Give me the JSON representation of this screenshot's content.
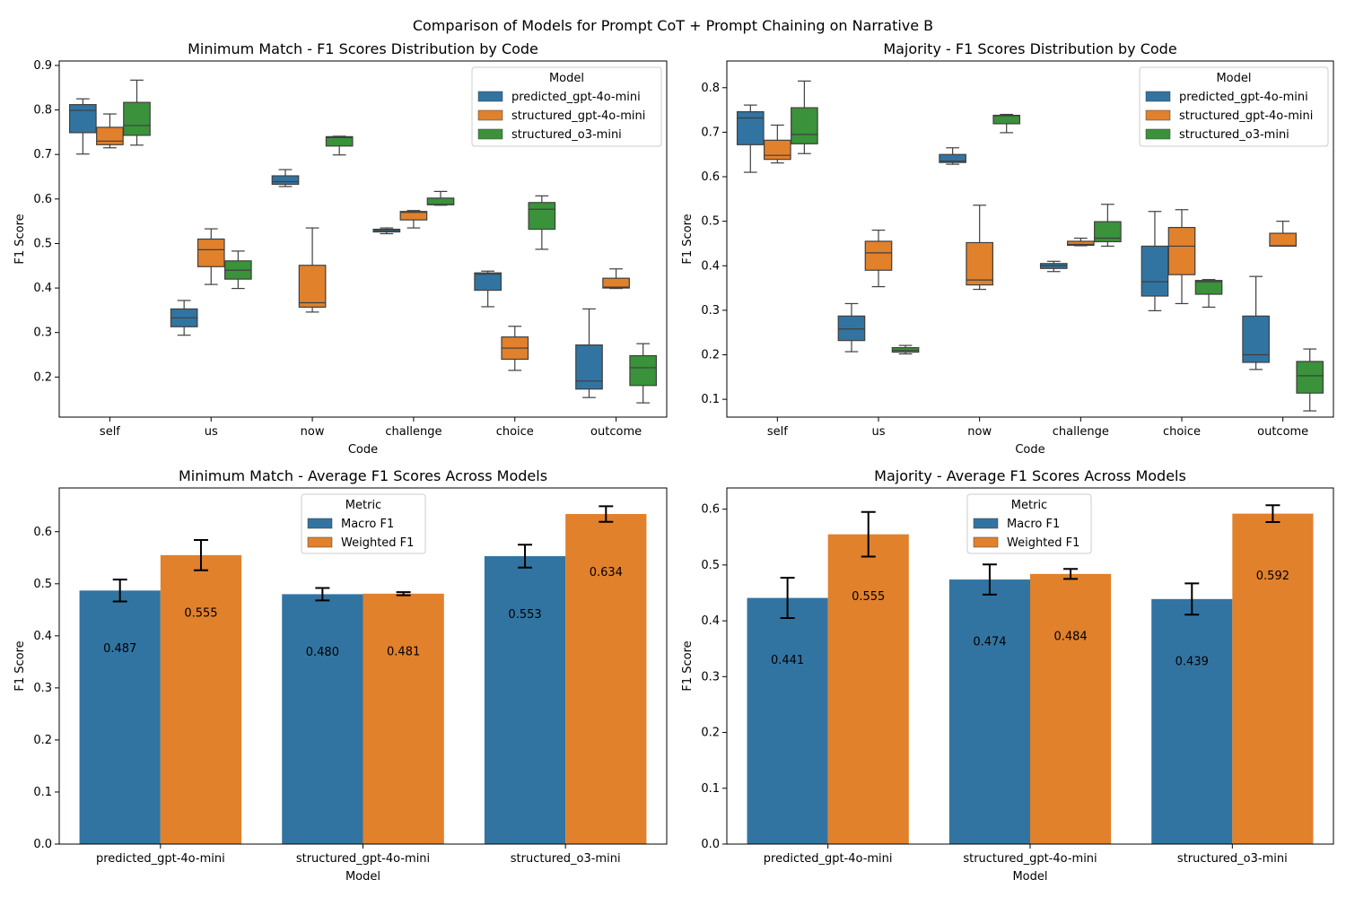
{
  "figure": {
    "title": "Comparison of Models for Prompt CoT + Prompt Chaining on Narrative B"
  },
  "colors": {
    "predicted_gpt-4o-mini": "#3274a1",
    "structured_gpt-4o-mini": "#e1812c",
    "structured_o3-mini": "#3a923a",
    "Macro F1": "#3274a1",
    "Weighted F1": "#e1812c",
    "box_line": "#3f3f3f"
  },
  "chart_data": [
    {
      "type": "box",
      "title": "Minimum Match - F1 Scores Distribution by Code",
      "xlabel": "Code",
      "ylabel": "F1 Score",
      "categories": [
        "self",
        "us",
        "now",
        "challenge",
        "choice",
        "outcome"
      ],
      "ylim": [
        0.11,
        0.91
      ],
      "yticks": [
        0.2,
        0.3,
        0.4,
        0.5,
        0.6,
        0.7,
        0.8,
        0.9
      ],
      "legend": {
        "title": "Model",
        "position": "top-right"
      },
      "series": [
        {
          "name": "predicted_gpt-4o-mini",
          "boxes": [
            {
              "min": 0.701,
              "q1": 0.749,
              "median": 0.799,
              "q3": 0.812,
              "max": 0.825
            },
            {
              "min": 0.294,
              "q1": 0.313,
              "median": 0.333,
              "q3": 0.353,
              "max": 0.372
            },
            {
              "min": 0.628,
              "q1": 0.633,
              "median": 0.639,
              "q3": 0.652,
              "max": 0.666
            },
            {
              "min": 0.522,
              "q1": 0.526,
              "median": 0.529,
              "q3": 0.532,
              "max": 0.535
            },
            {
              "min": 0.358,
              "q1": 0.395,
              "median": 0.431,
              "q3": 0.434,
              "max": 0.438
            },
            {
              "min": 0.154,
              "q1": 0.173,
              "median": 0.191,
              "q3": 0.272,
              "max": 0.353
            }
          ]
        },
        {
          "name": "structured_gpt-4o-mini",
          "boxes": [
            {
              "min": 0.715,
              "q1": 0.722,
              "median": 0.73,
              "q3": 0.761,
              "max": 0.791
            },
            {
              "min": 0.408,
              "q1": 0.448,
              "median": 0.486,
              "q3": 0.51,
              "max": 0.533
            },
            {
              "min": 0.346,
              "q1": 0.357,
              "median": 0.367,
              "q3": 0.451,
              "max": 0.535
            },
            {
              "min": 0.535,
              "q1": 0.553,
              "median": 0.57,
              "q3": 0.572,
              "max": 0.574
            },
            {
              "min": 0.215,
              "q1": 0.24,
              "median": 0.265,
              "q3": 0.29,
              "max": 0.314
            },
            {
              "min": 0.399,
              "q1": 0.4,
              "median": 0.402,
              "q3": 0.422,
              "max": 0.443
            }
          ]
        },
        {
          "name": "structured_o3-mini",
          "boxes": [
            {
              "min": 0.721,
              "q1": 0.743,
              "median": 0.765,
              "q3": 0.817,
              "max": 0.867
            },
            {
              "min": 0.399,
              "q1": 0.42,
              "median": 0.44,
              "q3": 0.461,
              "max": 0.483
            },
            {
              "min": 0.699,
              "q1": 0.719,
              "median": 0.738,
              "q3": 0.74,
              "max": 0.741
            },
            {
              "min": 0.586,
              "q1": 0.587,
              "median": 0.588,
              "q3": 0.602,
              "max": 0.617
            },
            {
              "min": 0.487,
              "q1": 0.532,
              "median": 0.577,
              "q3": 0.592,
              "max": 0.607
            },
            {
              "min": 0.142,
              "q1": 0.181,
              "median": 0.221,
              "q3": 0.248,
              "max": 0.275
            }
          ]
        }
      ]
    },
    {
      "type": "box",
      "title": "Majority - F1 Scores Distribution by Code",
      "xlabel": "Code",
      "ylabel": "F1 Score",
      "categories": [
        "self",
        "us",
        "now",
        "challenge",
        "choice",
        "outcome"
      ],
      "ylim": [
        0.06,
        0.86
      ],
      "yticks": [
        0.1,
        0.2,
        0.3,
        0.4,
        0.5,
        0.6,
        0.7,
        0.8
      ],
      "legend": {
        "title": "Model",
        "position": "top-right"
      },
      "series": [
        {
          "name": "predicted_gpt-4o-mini",
          "boxes": [
            {
              "min": 0.61,
              "q1": 0.672,
              "median": 0.732,
              "q3": 0.746,
              "max": 0.761
            },
            {
              "min": 0.207,
              "q1": 0.232,
              "median": 0.258,
              "q3": 0.287,
              "max": 0.315
            },
            {
              "min": 0.628,
              "q1": 0.632,
              "median": 0.635,
              "q3": 0.65,
              "max": 0.665
            },
            {
              "min": 0.387,
              "q1": 0.394,
              "median": 0.4,
              "q3": 0.405,
              "max": 0.41
            },
            {
              "min": 0.299,
              "q1": 0.332,
              "median": 0.364,
              "q3": 0.444,
              "max": 0.522
            },
            {
              "min": 0.167,
              "q1": 0.183,
              "median": 0.2,
              "q3": 0.287,
              "max": 0.376
            }
          ]
        },
        {
          "name": "structured_gpt-4o-mini",
          "boxes": [
            {
              "min": 0.631,
              "q1": 0.639,
              "median": 0.648,
              "q3": 0.682,
              "max": 0.716
            },
            {
              "min": 0.353,
              "q1": 0.39,
              "median": 0.429,
              "q3": 0.455,
              "max": 0.48
            },
            {
              "min": 0.347,
              "q1": 0.357,
              "median": 0.368,
              "q3": 0.452,
              "max": 0.536
            },
            {
              "min": 0.445,
              "q1": 0.446,
              "median": 0.448,
              "q3": 0.455,
              "max": 0.462
            },
            {
              "min": 0.315,
              "q1": 0.38,
              "median": 0.444,
              "q3": 0.486,
              "max": 0.526
            },
            {
              "min": 0.444,
              "q1": 0.444,
              "median": 0.445,
              "q3": 0.473,
              "max": 0.5
            }
          ]
        },
        {
          "name": "structured_o3-mini",
          "boxes": [
            {
              "min": 0.652,
              "q1": 0.674,
              "median": 0.695,
              "q3": 0.755,
              "max": 0.815
            },
            {
              "min": 0.202,
              "q1": 0.206,
              "median": 0.21,
              "q3": 0.216,
              "max": 0.221
            },
            {
              "min": 0.699,
              "q1": 0.719,
              "median": 0.737,
              "q3": 0.738,
              "max": 0.74
            },
            {
              "min": 0.444,
              "q1": 0.454,
              "median": 0.462,
              "q3": 0.499,
              "max": 0.538
            },
            {
              "min": 0.307,
              "q1": 0.336,
              "median": 0.364,
              "q3": 0.367,
              "max": 0.369
            },
            {
              "min": 0.074,
              "q1": 0.114,
              "median": 0.153,
              "q3": 0.185,
              "max": 0.213
            }
          ]
        }
      ]
    },
    {
      "type": "bar",
      "title": "Minimum Match - Average F1 Scores Across Models",
      "xlabel": "Model",
      "ylabel": "F1 Score",
      "categories": [
        "predicted_gpt-4o-mini",
        "structured_gpt-4o-mini",
        "structured_o3-mini"
      ],
      "ylim": [
        0,
        0.684
      ],
      "yticks": [
        0.0,
        0.1,
        0.2,
        0.3,
        0.4,
        0.5,
        0.6
      ],
      "legend": {
        "title": "Metric",
        "position": "top-center"
      },
      "series": [
        {
          "name": "Macro F1",
          "values": [
            0.487,
            0.48,
            0.553
          ],
          "errors": [
            0.021,
            0.012,
            0.022
          ],
          "labels": [
            "0.487",
            "0.480",
            "0.553"
          ]
        },
        {
          "name": "Weighted F1",
          "values": [
            0.555,
            0.481,
            0.634
          ],
          "errors": [
            0.029,
            0.003,
            0.015
          ],
          "labels": [
            "0.555",
            "0.481",
            "0.634"
          ]
        }
      ]
    },
    {
      "type": "bar",
      "title": "Majority - Average F1 Scores Across Models",
      "xlabel": "Model",
      "ylabel": "F1 Score",
      "categories": [
        "predicted_gpt-4o-mini",
        "structured_gpt-4o-mini",
        "structured_o3-mini"
      ],
      "ylim": [
        0,
        0.638
      ],
      "yticks": [
        0.0,
        0.1,
        0.2,
        0.3,
        0.4,
        0.5,
        0.6
      ],
      "legend": {
        "title": "Metric",
        "position": "top-center"
      },
      "series": [
        {
          "name": "Macro F1",
          "values": [
            0.441,
            0.474,
            0.439
          ],
          "errors": [
            0.036,
            0.027,
            0.028
          ],
          "labels": [
            "0.441",
            "0.474",
            "0.439"
          ]
        },
        {
          "name": "Weighted F1",
          "values": [
            0.555,
            0.484,
            0.592
          ],
          "errors": [
            0.04,
            0.009,
            0.015
          ],
          "labels": [
            "0.555",
            "0.484",
            "0.592"
          ]
        }
      ]
    }
  ]
}
